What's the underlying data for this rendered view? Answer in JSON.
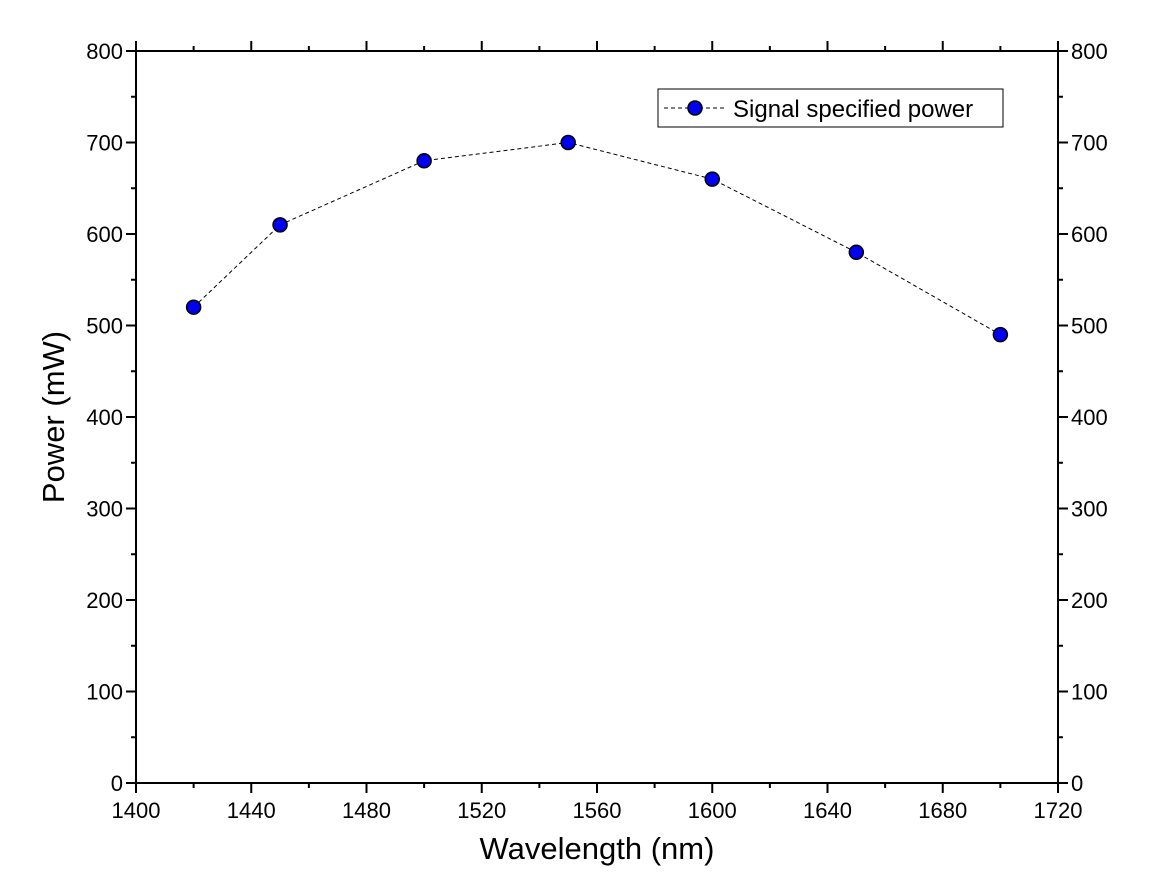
{
  "chart_data": {
    "type": "line",
    "xlabel": "Wavelength (nm)",
    "ylabel": "Power (mW)",
    "xlim": [
      1400,
      1720
    ],
    "ylim": [
      0,
      800
    ],
    "x_ticks": [
      1400,
      1440,
      1480,
      1520,
      1560,
      1600,
      1640,
      1680,
      1720
    ],
    "y_ticks": [
      0,
      100,
      200,
      300,
      400,
      500,
      600,
      700,
      800
    ],
    "x_tick_labels": [
      "1400",
      "1440",
      "1480",
      "1520",
      "1560",
      "1600",
      "1640",
      "1680",
      "1720"
    ],
    "y_tick_labels": [
      "0",
      "100",
      "200",
      "300",
      "400",
      "500",
      "600",
      "700",
      "800"
    ],
    "grid": false,
    "legend_position": "top-right",
    "series": [
      {
        "name": "Signal specified power",
        "x": [
          1420,
          1450,
          1500,
          1550,
          1600,
          1650,
          1700
        ],
        "y": [
          520,
          610,
          680,
          700,
          660,
          580,
          490
        ],
        "line_style": "dashed",
        "line_color": "#000000",
        "marker": "circle",
        "marker_color": "#0000ee"
      }
    ]
  }
}
